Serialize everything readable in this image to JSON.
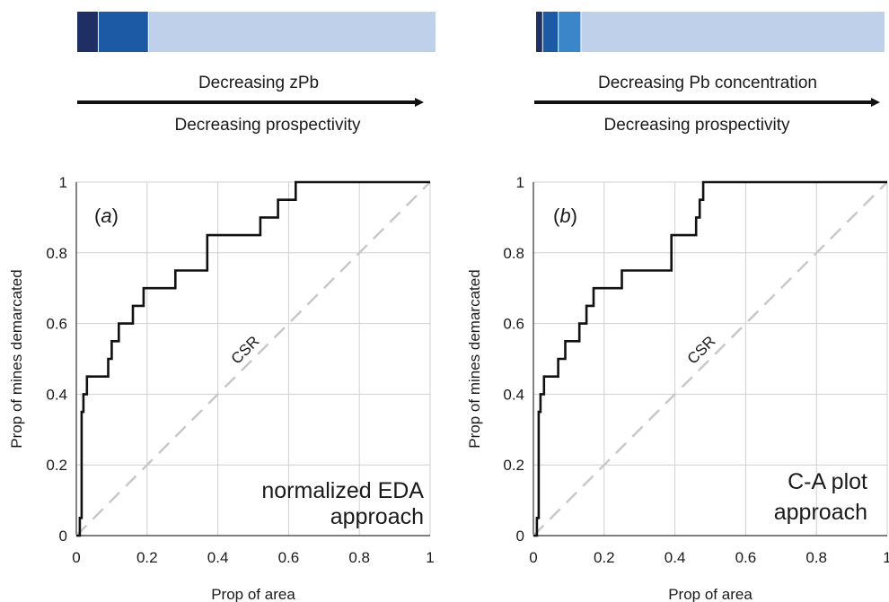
{
  "colors": {
    "dark_navy": "#1f2e63",
    "mid_blue": "#1d5aa6",
    "bright_blue": "#3a86c8",
    "pale_blue": "#bfd1ea",
    "roc_line": "#111111",
    "csr_line": "#c8c8c8",
    "grid": "#cfcfcf"
  },
  "chart_data": [
    {
      "type": "line",
      "panel_label_prefix": "(",
      "panel_label_letter": "a",
      "panel_label_suffix": ")",
      "xlabel": "Prop of area",
      "ylabel": "Prop of mines demarcated",
      "annotation_lines": [
        "normalized EDA",
        "approach"
      ],
      "diagonal_label": "CSR",
      "xlim": [
        0,
        1
      ],
      "ylim": [
        0,
        1
      ],
      "xticks": [
        "0",
        "0.2",
        "0.4",
        "0.6",
        "0.8",
        "1"
      ],
      "yticks": [
        "0",
        "0.2",
        "0.4",
        "0.6",
        "0.8",
        "1"
      ],
      "grid": true,
      "legend_bar": {
        "segments": [
          {
            "fraction": 0.06,
            "color": "#1f2e63"
          },
          {
            "fraction": 0.14,
            "color": "#1d5aa6"
          },
          {
            "fraction": 0.8,
            "color": "#bfd1ea"
          }
        ]
      },
      "arrow_top_text": "Decreasing zPb",
      "arrow_bottom_text": "Decreasing prospectivity",
      "series": [
        {
          "x": [
            0,
            0.01,
            0.01,
            0.015,
            0.015,
            0.02,
            0.02,
            0.03,
            0.03,
            0.09,
            0.09,
            0.1,
            0.1,
            0.12,
            0.12,
            0.16,
            0.16,
            0.19,
            0.19,
            0.28,
            0.28,
            0.37,
            0.37,
            0.52,
            0.52,
            0.57,
            0.57,
            0.62,
            0.62,
            1.0
          ],
          "y": [
            0,
            0,
            0.05,
            0.05,
            0.35,
            0.35,
            0.4,
            0.4,
            0.45,
            0.45,
            0.5,
            0.5,
            0.55,
            0.55,
            0.6,
            0.6,
            0.65,
            0.65,
            0.7,
            0.7,
            0.75,
            0.75,
            0.85,
            0.85,
            0.9,
            0.9,
            0.95,
            0.95,
            1.0,
            1.0
          ]
        }
      ],
      "csr": {
        "x": [
          0,
          1
        ],
        "y": [
          0,
          1
        ]
      }
    },
    {
      "type": "line",
      "panel_label_prefix": "(",
      "panel_label_letter": "b",
      "panel_label_suffix": ")",
      "xlabel": "Prop of area",
      "ylabel": "Prop of mines demarcated",
      "annotation_lines": [
        "C-A plot",
        "approach"
      ],
      "diagonal_label": "CSR",
      "xlim": [
        0,
        1
      ],
      "ylim": [
        0,
        1
      ],
      "xticks": [
        "0",
        "0.2",
        "0.4",
        "0.6",
        "0.8",
        "1"
      ],
      "yticks": [
        "0",
        "0.2",
        "0.4",
        "0.6",
        "0.8",
        "1"
      ],
      "grid": true,
      "legend_bar": {
        "segments": [
          {
            "fraction": 0.02,
            "color": "#1f2e63"
          },
          {
            "fraction": 0.045,
            "color": "#1d5aa6"
          },
          {
            "fraction": 0.065,
            "color": "#3a86c8"
          },
          {
            "fraction": 0.87,
            "color": "#bfd1ea"
          }
        ]
      },
      "arrow_top_text": "Decreasing Pb concentration",
      "arrow_bottom_text": "Decreasing prospectivity",
      "series": [
        {
          "x": [
            0,
            0.01,
            0.01,
            0.015,
            0.015,
            0.02,
            0.02,
            0.03,
            0.03,
            0.07,
            0.07,
            0.09,
            0.09,
            0.13,
            0.13,
            0.15,
            0.15,
            0.17,
            0.17,
            0.25,
            0.25,
            0.39,
            0.39,
            0.46,
            0.46,
            0.47,
            0.47,
            0.48,
            0.48,
            1.0
          ],
          "y": [
            0,
            0,
            0.05,
            0.05,
            0.35,
            0.35,
            0.4,
            0.4,
            0.45,
            0.45,
            0.5,
            0.5,
            0.55,
            0.55,
            0.6,
            0.6,
            0.65,
            0.65,
            0.7,
            0.7,
            0.75,
            0.75,
            0.85,
            0.85,
            0.9,
            0.9,
            0.95,
            0.95,
            1.0,
            1.0
          ]
        }
      ],
      "csr": {
        "x": [
          0,
          1
        ],
        "y": [
          0,
          1
        ]
      }
    }
  ]
}
